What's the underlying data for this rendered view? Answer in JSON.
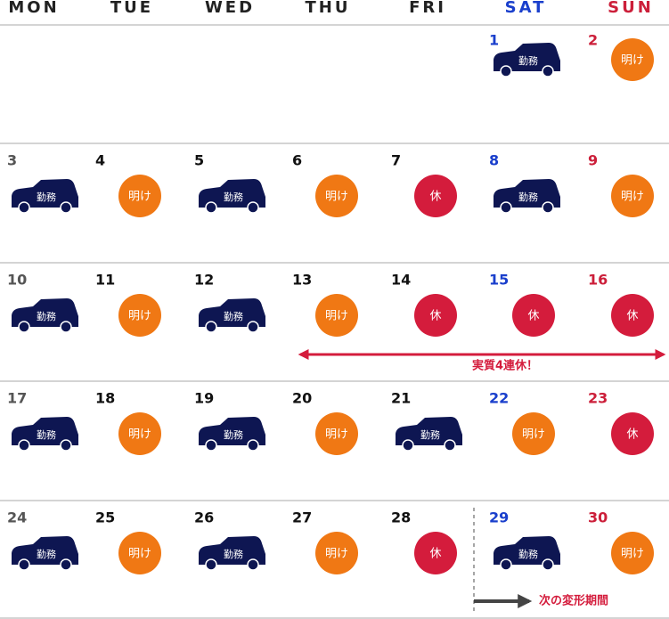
{
  "weekdays": [
    "MON",
    "TUE",
    "WED",
    "THU",
    "FRI",
    "SAT",
    "SUN"
  ],
  "weeks": [
    [
      null,
      null,
      null,
      null,
      null,
      {
        "day": 1,
        "shift": "勤務",
        "icon": "car",
        "color": "#0e1652"
      },
      {
        "day": 2,
        "shift": "明け",
        "icon": "circle",
        "color": "#f07814"
      }
    ],
    [
      {
        "day": 3,
        "shift": "勤務",
        "icon": "car",
        "color": "#0e1652"
      },
      {
        "day": 4,
        "shift": "明け",
        "icon": "circle",
        "color": "#f07814"
      },
      {
        "day": 5,
        "shift": "勤務",
        "icon": "car",
        "color": "#0e1652"
      },
      {
        "day": 6,
        "shift": "明け",
        "icon": "circle",
        "color": "#f07814"
      },
      {
        "day": 7,
        "shift": "休",
        "icon": "circle",
        "color": "#d41c3c"
      },
      {
        "day": 8,
        "shift": "勤務",
        "icon": "car",
        "color": "#0e1652"
      },
      {
        "day": 9,
        "shift": "明け",
        "icon": "circle",
        "color": "#f07814"
      }
    ],
    [
      {
        "day": 10,
        "shift": "勤務",
        "icon": "car",
        "color": "#0e1652"
      },
      {
        "day": 11,
        "shift": "明け",
        "icon": "circle",
        "color": "#f07814"
      },
      {
        "day": 12,
        "shift": "勤務",
        "icon": "car",
        "color": "#0e1652"
      },
      {
        "day": 13,
        "shift": "明け",
        "icon": "circle",
        "color": "#f07814"
      },
      {
        "day": 14,
        "shift": "休",
        "icon": "circle",
        "color": "#d41c3c"
      },
      {
        "day": 15,
        "shift": "休",
        "icon": "circle",
        "color": "#d41c3c"
      },
      {
        "day": 16,
        "shift": "休",
        "icon": "circle",
        "color": "#d41c3c"
      }
    ],
    [
      {
        "day": 17,
        "shift": "勤務",
        "icon": "car",
        "color": "#0e1652"
      },
      {
        "day": 18,
        "shift": "明け",
        "icon": "circle",
        "color": "#f07814"
      },
      {
        "day": 19,
        "shift": "勤務",
        "icon": "car",
        "color": "#0e1652"
      },
      {
        "day": 20,
        "shift": "明け",
        "icon": "circle",
        "color": "#f07814"
      },
      {
        "day": 21,
        "shift": "勤務",
        "icon": "car",
        "color": "#0e1652"
      },
      {
        "day": 22,
        "shift": "明け",
        "icon": "circle",
        "color": "#f07814"
      },
      {
        "day": 23,
        "shift": "休",
        "icon": "circle",
        "color": "#d41c3c"
      }
    ],
    [
      {
        "day": 24,
        "shift": "勤務",
        "icon": "car",
        "color": "#0e1652"
      },
      {
        "day": 25,
        "shift": "明け",
        "icon": "circle",
        "color": "#f07814"
      },
      {
        "day": 26,
        "shift": "勤務",
        "icon": "car",
        "color": "#0e1652"
      },
      {
        "day": 27,
        "shift": "明け",
        "icon": "circle",
        "color": "#f07814"
      },
      {
        "day": 28,
        "shift": "休",
        "icon": "circle",
        "color": "#d41c3c"
      },
      {
        "day": 29,
        "shift": "勤務",
        "icon": "car",
        "color": "#0e1652"
      },
      {
        "day": 30,
        "shift": "明け",
        "icon": "circle",
        "color": "#f07814"
      }
    ]
  ],
  "annotations": {
    "holiday": "実質4連休！",
    "next_period": "次の変形期間"
  }
}
